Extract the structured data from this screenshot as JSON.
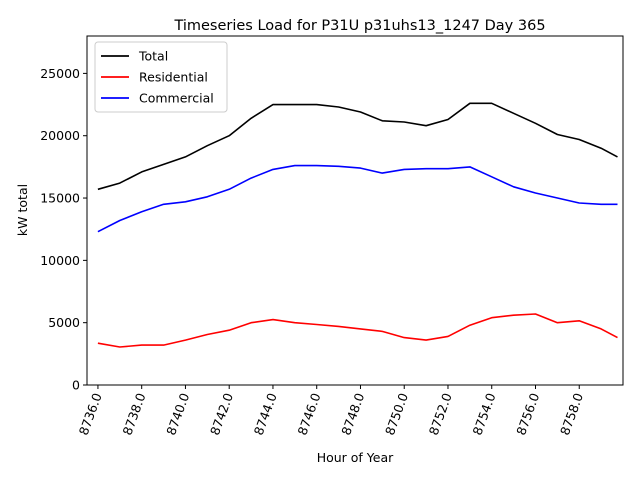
{
  "chart_data": {
    "type": "line",
    "title": "Timeseries Load for P31U p31uhs13_1247  Day 365",
    "xlabel": "Hour of Year",
    "ylabel": "kW total",
    "xlim": [
      8735.5,
      8760.0
    ],
    "ylim": [
      0,
      28000
    ],
    "xticks": [
      8736,
      8738,
      8740,
      8742,
      8744,
      8746,
      8748,
      8750,
      8752,
      8754,
      8756,
      8758
    ],
    "xtick_labels": [
      "8736.0",
      "8738.0",
      "8740.0",
      "8742.0",
      "8744.0",
      "8746.0",
      "8748.0",
      "8750.0",
      "8752.0",
      "8754.0",
      "8756.0",
      "8758.0"
    ],
    "yticks": [
      0,
      5000,
      10000,
      15000,
      20000,
      25000
    ],
    "ytick_labels": [
      "0",
      "5000",
      "10000",
      "15000",
      "20000",
      "25000"
    ],
    "grid": false,
    "legend_position": "top-left",
    "x": [
      8736,
      8737,
      8738,
      8739,
      8740,
      8741,
      8742,
      8743,
      8744,
      8745,
      8746,
      8747,
      8748,
      8749,
      8750,
      8751,
      8752,
      8753,
      8754,
      8755,
      8756,
      8757,
      8758,
      8759,
      8759.75
    ],
    "series": [
      {
        "name": "Total",
        "color": "#000000",
        "values": [
          15700,
          16200,
          17100,
          17700,
          18300,
          19200,
          20000,
          21400,
          22500,
          22500,
          22500,
          22300,
          21900,
          21200,
          21100,
          20800,
          21300,
          22600,
          22600,
          21800,
          21000,
          20100,
          19700,
          19000,
          18300
        ]
      },
      {
        "name": "Residential",
        "color": "#ff0000",
        "values": [
          3350,
          3050,
          3200,
          3200,
          3600,
          4050,
          4400,
          5000,
          5250,
          5000,
          4850,
          4700,
          4500,
          4300,
          3800,
          3600,
          3900,
          4800,
          5400,
          5600,
          5700,
          5000,
          5150,
          4500,
          3800
        ]
      },
      {
        "name": "Commercial",
        "color": "#0000ff",
        "values": [
          12300,
          13200,
          13900,
          14500,
          14700,
          15100,
          15700,
          16600,
          17300,
          17600,
          17600,
          17550,
          17400,
          17000,
          17300,
          17350,
          17350,
          17500,
          16700,
          15900,
          15400,
          15000,
          14600,
          14500,
          14500
        ]
      }
    ]
  }
}
